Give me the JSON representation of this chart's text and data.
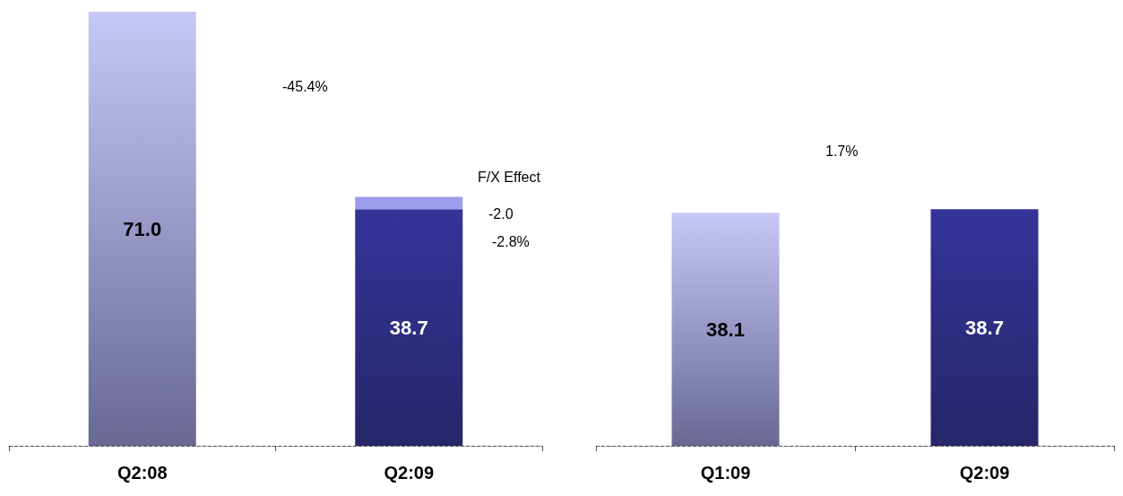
{
  "chart_data": [
    {
      "type": "bar",
      "categories": [
        "Q2:08",
        "Q2:09"
      ],
      "stacked": true,
      "series": [
        {
          "colors": [
            "#c8c8f8",
            "#34349a"
          ],
          "values": [
            71.0,
            38.7
          ],
          "value_labels": [
            "71.0",
            "38.7"
          ]
        },
        {
          "color": "#9c9cec",
          "values": [
            null,
            2.0
          ]
        }
      ],
      "annotations": [
        "-45.4%",
        "F/X Effect",
        "-2.0",
        "-2.8%"
      ]
    },
    {
      "type": "bar",
      "categories": [
        "Q1:09",
        "Q2:09"
      ],
      "series": [
        {
          "colors": [
            "#c8c8f8",
            "#34349a"
          ],
          "values": [
            38.1,
            38.7
          ],
          "value_labels": [
            "38.1",
            "38.7"
          ]
        }
      ],
      "annotations": [
        "1.7%"
      ]
    }
  ]
}
